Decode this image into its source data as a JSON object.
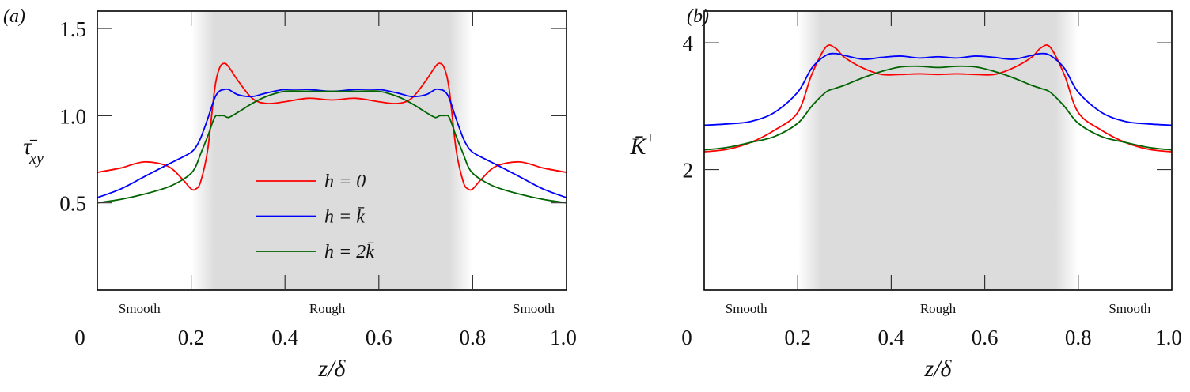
{
  "chart_data": [
    {
      "type": "line",
      "panel_label": "(a)",
      "ylabel": "τ̄⁺xy",
      "ylabel_main": "τ̄",
      "ylabel_sup": "+",
      "ylabel_sub": "xy",
      "xlabel": "z/δ",
      "xlim": [
        0,
        1
      ],
      "ylim": [
        0,
        1.6
      ],
      "xticks": [
        0,
        0.2,
        0.4,
        0.6,
        0.8,
        1.0
      ],
      "xtick_labels": [
        "0",
        "0.2",
        "0.4",
        "0.6",
        "0.8",
        "1.0"
      ],
      "yticks": [
        0.5,
        1.0,
        1.5
      ],
      "ytick_labels": [
        "0.5",
        "1.0",
        "1.5"
      ],
      "grid": false,
      "shaded_region": {
        "x": [
          0.25,
          0.75
        ],
        "fade": [
          0.2,
          0.8
        ],
        "color": "#dcdcdc"
      },
      "region_labels": [
        {
          "text": "Smooth",
          "x": 0.09
        },
        {
          "text": "Rough",
          "x": 0.49
        },
        {
          "text": "Smooth",
          "x": 0.93
        }
      ],
      "legend": {
        "placement": "center-left",
        "entries": [
          "h = 0",
          "h = k̄",
          "h = 2k̄"
        ]
      },
      "x": [
        0,
        0.05,
        0.1,
        0.15,
        0.18,
        0.2,
        0.21,
        0.22,
        0.235,
        0.25,
        0.26,
        0.27,
        0.28,
        0.3,
        0.33,
        0.36,
        0.4,
        0.45,
        0.5,
        0.55,
        0.6,
        0.64,
        0.67,
        0.7,
        0.72,
        0.73,
        0.74,
        0.75,
        0.765,
        0.78,
        0.79,
        0.8,
        0.82,
        0.85,
        0.9,
        0.95,
        1.0
      ],
      "series": [
        {
          "name": "h = 0",
          "color": "#ff0000",
          "values": [
            0.675,
            0.7,
            0.735,
            0.71,
            0.64,
            0.58,
            0.58,
            0.62,
            0.8,
            1.15,
            1.27,
            1.3,
            1.28,
            1.2,
            1.1,
            1.07,
            1.08,
            1.1,
            1.09,
            1.1,
            1.08,
            1.07,
            1.1,
            1.2,
            1.28,
            1.3,
            1.27,
            1.15,
            0.8,
            0.62,
            0.58,
            0.58,
            0.64,
            0.71,
            0.735,
            0.7,
            0.675
          ]
        },
        {
          "name": "h = k̄",
          "color": "#0000ff",
          "values": [
            0.53,
            0.58,
            0.65,
            0.72,
            0.76,
            0.79,
            0.82,
            0.87,
            0.98,
            1.1,
            1.14,
            1.15,
            1.15,
            1.12,
            1.11,
            1.13,
            1.15,
            1.15,
            1.14,
            1.15,
            1.15,
            1.13,
            1.11,
            1.12,
            1.15,
            1.15,
            1.14,
            1.1,
            0.98,
            0.87,
            0.82,
            0.79,
            0.76,
            0.72,
            0.65,
            0.58,
            0.53
          ]
        },
        {
          "name": "h = 2k̄",
          "color": "#006400",
          "values": [
            0.5,
            0.52,
            0.55,
            0.59,
            0.63,
            0.67,
            0.71,
            0.78,
            0.88,
            0.99,
            1.0,
            1.0,
            0.99,
            1.02,
            1.07,
            1.11,
            1.14,
            1.14,
            1.14,
            1.14,
            1.14,
            1.11,
            1.07,
            1.02,
            0.99,
            1.0,
            1.0,
            0.99,
            0.88,
            0.78,
            0.71,
            0.67,
            0.63,
            0.59,
            0.55,
            0.52,
            0.5
          ]
        }
      ]
    },
    {
      "type": "line",
      "panel_label": "(b)",
      "ylabel": "K̄⁺",
      "ylabel_main": "K̄",
      "ylabel_sup": "+",
      "xlabel": "z/δ",
      "xlim": [
        0,
        1
      ],
      "ylim": [
        0.1,
        4.5
      ],
      "xticks": [
        0,
        0.2,
        0.4,
        0.6,
        0.8,
        1.0
      ],
      "xtick_labels": [
        "0",
        "0.2",
        "0.4",
        "0.6",
        "0.8",
        "1.0"
      ],
      "yticks": [
        2,
        4
      ],
      "ytick_labels": [
        "2",
        "4"
      ],
      "grid": false,
      "shaded_region": {
        "x": [
          0.25,
          0.75
        ],
        "fade": [
          0.2,
          0.8
        ],
        "color": "#dcdcdc"
      },
      "region_labels": [
        {
          "text": "Smooth",
          "x": 0.09
        },
        {
          "text": "Rough",
          "x": 0.5
        },
        {
          "text": "Smooth",
          "x": 0.91
        }
      ],
      "x": [
        0,
        0.05,
        0.1,
        0.15,
        0.2,
        0.23,
        0.26,
        0.28,
        0.3,
        0.34,
        0.38,
        0.42,
        0.46,
        0.5,
        0.54,
        0.58,
        0.62,
        0.66,
        0.7,
        0.72,
        0.74,
        0.77,
        0.8,
        0.85,
        0.9,
        0.95,
        1.0
      ],
      "series": [
        {
          "name": "h = 0",
          "color": "#ff0000",
          "values": [
            2.28,
            2.32,
            2.43,
            2.62,
            2.9,
            3.5,
            3.93,
            3.92,
            3.77,
            3.6,
            3.5,
            3.5,
            3.51,
            3.5,
            3.51,
            3.5,
            3.5,
            3.6,
            3.77,
            3.92,
            3.93,
            3.5,
            2.9,
            2.62,
            2.43,
            2.32,
            2.28
          ]
        },
        {
          "name": "h = k̄",
          "color": "#0000ff",
          "values": [
            2.7,
            2.72,
            2.76,
            2.9,
            3.22,
            3.6,
            3.8,
            3.83,
            3.8,
            3.74,
            3.77,
            3.79,
            3.76,
            3.78,
            3.76,
            3.79,
            3.77,
            3.74,
            3.8,
            3.83,
            3.8,
            3.6,
            3.22,
            2.9,
            2.76,
            2.72,
            2.7
          ]
        },
        {
          "name": "h = 2k̄",
          "color": "#006400",
          "values": [
            2.31,
            2.35,
            2.43,
            2.52,
            2.73,
            3.0,
            3.22,
            3.28,
            3.33,
            3.45,
            3.55,
            3.62,
            3.63,
            3.61,
            3.63,
            3.62,
            3.55,
            3.45,
            3.33,
            3.28,
            3.22,
            3.0,
            2.73,
            2.52,
            2.43,
            2.35,
            2.31
          ]
        }
      ]
    }
  ]
}
